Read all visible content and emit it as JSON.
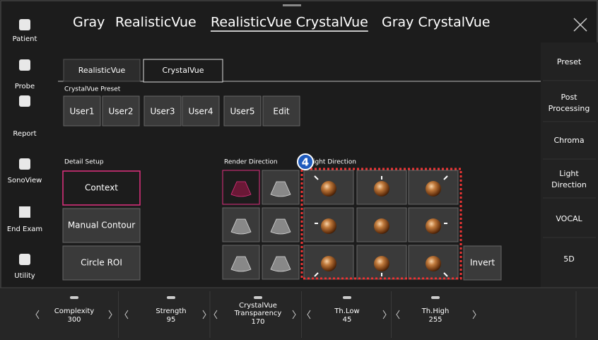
{
  "sidebar": [
    "Patient",
    "Probe",
    "Report",
    "SonoView",
    "End Exam",
    "Utility"
  ],
  "tabs": [
    "Gray",
    "RealisticVue",
    "RealisticVue CrystalVue",
    "Gray CrystalVue"
  ],
  "right_menu": [
    "Preset",
    "Post Processing",
    "Chroma",
    "Light Direction",
    "VOCAL",
    "5D"
  ],
  "sub_tabs": [
    "RealisticVue",
    "CrystalVue"
  ],
  "preset_label": "CrystalVue Preset",
  "presets": [
    "User1",
    "User2",
    "User3",
    "User4",
    "User5",
    "Edit"
  ],
  "detail_label": "Detail Setup",
  "detail_buttons": [
    "Context",
    "Manual Contour",
    "Circle ROI"
  ],
  "render_label": "Render Direction",
  "light_label": "Light Direction",
  "badge": "4",
  "invert": "Invert",
  "params": [
    {
      "name": "Complexity",
      "value": 300
    },
    {
      "name": "Strength",
      "value": 95
    },
    {
      "name": "CrystalVue Transparency",
      "value": 170
    },
    {
      "name": "Th.Low",
      "value": 45
    },
    {
      "name": "Th.High",
      "value": 255
    }
  ]
}
